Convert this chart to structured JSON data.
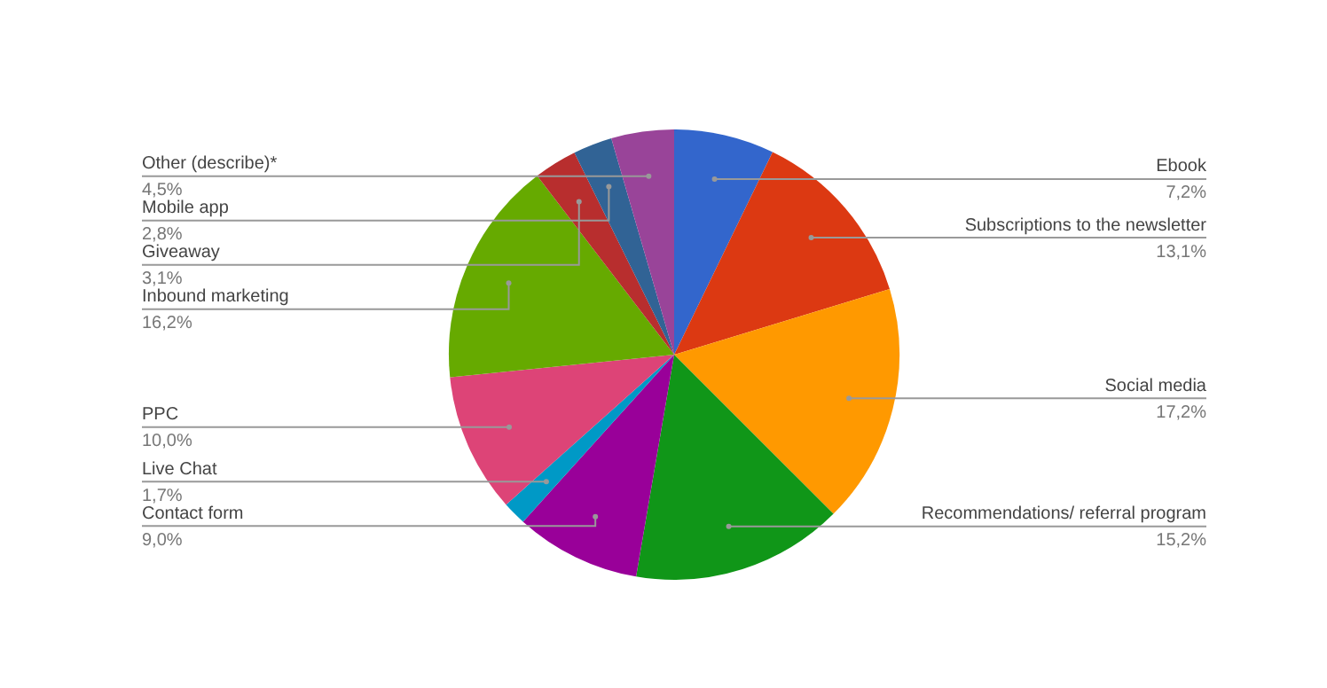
{
  "chart_data": {
    "type": "pie",
    "categories": [
      "Ebook",
      "Subscriptions to the newsletter",
      "Social media",
      "Recommendations/ referral program",
      "Contact form",
      "Live Chat",
      "PPC",
      "Inbound marketing",
      "Giveaway",
      "Mobile app",
      "Other (describe)*"
    ],
    "values": [
      7.2,
      13.1,
      17.2,
      15.2,
      9.0,
      1.7,
      10.0,
      16.2,
      3.1,
      2.8,
      4.5
    ],
    "value_labels": [
      "7,2%",
      "13,1%",
      "17,2%",
      "15,2%",
      "9,0%",
      "1,7%",
      "10,0%",
      "16,2%",
      "3,1%",
      "2,8%",
      "4,5%"
    ],
    "colors": [
      "#3366cc",
      "#dc3912",
      "#ff9900",
      "#109618",
      "#990099",
      "#0099c6",
      "#dd4477",
      "#66aa00",
      "#b82e2e",
      "#316395",
      "#994499"
    ],
    "legend": false
  }
}
